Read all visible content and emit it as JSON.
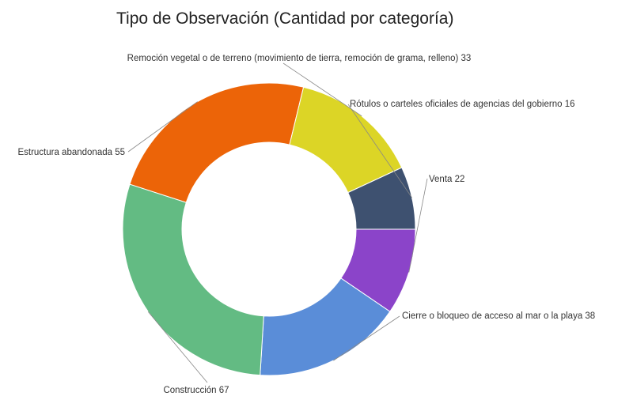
{
  "chart_data": {
    "type": "pie",
    "donut": true,
    "title": "Tipo de Observación (Cantidad por categoría)",
    "series": [
      {
        "name": "Venta",
        "value": 22,
        "color": "#8B44C9"
      },
      {
        "name": "Cierre o bloqueo de acceso al mar o la playa",
        "value": 38,
        "color": "#5A8DD8"
      },
      {
        "name": "Construcción",
        "value": 67,
        "color": "#63BB83"
      },
      {
        "name": "Estructura abandonada",
        "value": 55,
        "color": "#EC6408"
      },
      {
        "name": "Remoción vegetal o de terreno (movimiento de tierra, remoción de grama, relleno)",
        "value": 33,
        "color": "#DCD526"
      },
      {
        "name": "Rótulos o carteles oficiales de agencias del gobierno",
        "value": 16,
        "color": "#3E5170"
      }
    ],
    "legend": "none"
  }
}
